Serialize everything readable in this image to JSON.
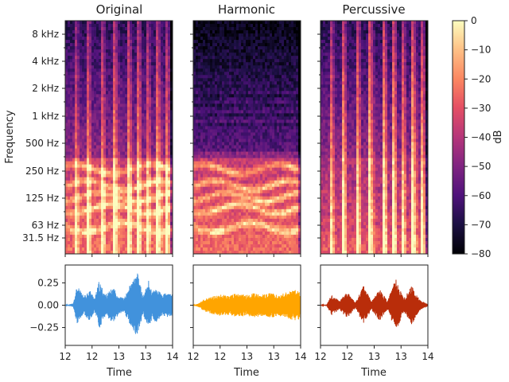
{
  "chart_data": [
    {
      "type": "heatmap",
      "title": "Original",
      "ylabel": "Frequency",
      "yticks": [
        "8 kHz",
        "4 kHz",
        "2 kHz",
        "1 kHz",
        "500 Hz",
        "250 Hz",
        "125 Hz",
        "63 Hz",
        "31.5 Hz"
      ],
      "xlim": [
        12,
        14
      ],
      "y_scale": "log",
      "colormap": "magma"
    },
    {
      "type": "heatmap",
      "title": "Harmonic",
      "xlim": [
        12,
        14
      ],
      "y_scale": "log",
      "colormap": "magma"
    },
    {
      "type": "heatmap",
      "title": "Percussive",
      "xlim": [
        12,
        14
      ],
      "y_scale": "log",
      "colormap": "magma"
    },
    {
      "type": "line",
      "kind": "waveform",
      "color": "#4192dc",
      "xlabel": "Time",
      "xticks": [
        "12",
        "12",
        "13",
        "13",
        "14"
      ],
      "yticks": [
        "0.25",
        "0.00",
        "−0.25"
      ],
      "xlim": [
        12,
        14
      ],
      "ylim": [
        -0.45,
        0.45
      ],
      "envelope": {
        "x": [
          12.0,
          12.15,
          12.22,
          12.35,
          12.45,
          12.55,
          12.63,
          12.75,
          12.9,
          13.0,
          13.1,
          13.2,
          13.35,
          13.45,
          13.55,
          13.62,
          13.7,
          13.8,
          13.9,
          14.0
        ],
        "y": [
          0.0,
          0.02,
          0.22,
          0.1,
          0.18,
          0.08,
          0.27,
          0.12,
          0.2,
          0.1,
          0.08,
          0.22,
          0.36,
          0.1,
          0.28,
          0.15,
          0.2,
          0.12,
          0.14,
          0.12
        ]
      }
    },
    {
      "type": "line",
      "kind": "waveform",
      "color": "#ffa500",
      "xlabel": "Time",
      "xticks": [
        "12",
        "12",
        "13",
        "13",
        "14"
      ],
      "xlim": [
        12,
        14
      ],
      "ylim": [
        -0.45,
        0.45
      ],
      "envelope": {
        "x": [
          12.0,
          12.1,
          12.2,
          12.35,
          12.5,
          12.65,
          12.8,
          13.0,
          13.15,
          13.3,
          13.45,
          13.6,
          13.75,
          13.9,
          14.0
        ],
        "y": [
          0.0,
          0.02,
          0.07,
          0.1,
          0.12,
          0.11,
          0.13,
          0.12,
          0.14,
          0.12,
          0.14,
          0.12,
          0.15,
          0.17,
          0.16
        ]
      }
    },
    {
      "type": "line",
      "kind": "waveform",
      "color": "#b92d0a",
      "xlabel": "Time",
      "xticks": [
        "12",
        "12",
        "13",
        "13",
        "14"
      ],
      "xlim": [
        12,
        14
      ],
      "ylim": [
        -0.45,
        0.45
      ],
      "envelope": {
        "x": [
          12.0,
          12.12,
          12.2,
          12.35,
          12.5,
          12.65,
          12.8,
          12.95,
          13.1,
          13.25,
          13.4,
          13.55,
          13.7,
          13.85,
          14.0
        ],
        "y": [
          0.0,
          0.01,
          0.12,
          0.05,
          0.15,
          0.03,
          0.22,
          0.05,
          0.18,
          0.05,
          0.3,
          0.08,
          0.22,
          0.06,
          0.01
        ]
      }
    }
  ],
  "colorbar": {
    "label": "dB",
    "ticks": [
      "0",
      "−10",
      "−20",
      "−30",
      "−40",
      "−50",
      "−60",
      "−70",
      "−80"
    ],
    "range": [
      -80,
      0
    ]
  }
}
